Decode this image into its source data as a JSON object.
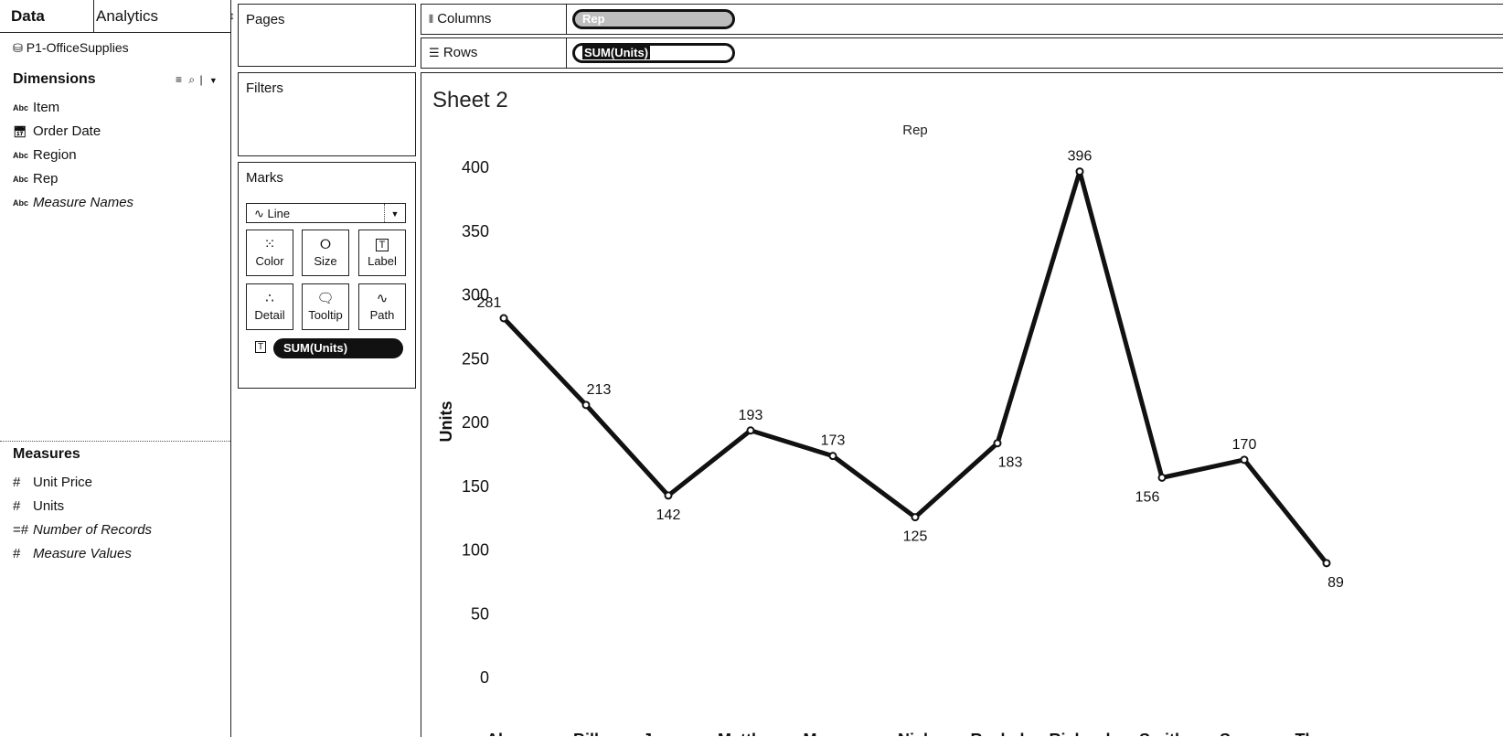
{
  "left_pane": {
    "tabs": {
      "data": "Data",
      "analytics": "Analytics"
    },
    "datasource": "P1-OfficeSupplies",
    "dimensions_header": "Dimensions",
    "dimensions": [
      {
        "type": "Abc",
        "label": "Item",
        "italic": false
      },
      {
        "type": "date",
        "label": "Order Date",
        "italic": false
      },
      {
        "type": "Abc",
        "label": "Region",
        "italic": false
      },
      {
        "type": "Abc",
        "label": "Rep",
        "italic": false
      },
      {
        "type": "Abc",
        "label": "Measure Names",
        "italic": true
      }
    ],
    "measures_header": "Measures",
    "measures": [
      {
        "label": "Unit Price",
        "italic": false
      },
      {
        "label": "Units",
        "italic": false
      },
      {
        "label": "Number of Records",
        "italic": true
      },
      {
        "label": "Measure Values",
        "italic": true
      }
    ]
  },
  "pages": {
    "title": "Pages"
  },
  "filters": {
    "title": "Filters"
  },
  "marks": {
    "title": "Marks",
    "type_select": "Line",
    "buttons": [
      "Color",
      "Size",
      "Label",
      "Detail",
      "Tooltip",
      "Path"
    ],
    "label_pill": "SUM(Units)"
  },
  "shelves": {
    "columns_label": "Columns",
    "columns_pill": "Rep",
    "rows_label": "Rows",
    "rows_pill": "SUM(Units)"
  },
  "sheet": {
    "title": "Sheet 2"
  },
  "chart_data": {
    "type": "line",
    "title": "Rep",
    "xlabel": "Rep",
    "ylabel": "Units",
    "categories": [
      "Alex",
      "Bill",
      "James",
      "Matthew",
      "Morgan",
      "Nick",
      "Rachel",
      "Richard",
      "Smith",
      "Susan",
      "Thomas"
    ],
    "values": [
      281,
      213,
      142,
      193,
      173,
      125,
      183,
      396,
      156,
      170,
      89
    ],
    "yticks": [
      0,
      50,
      100,
      150,
      200,
      250,
      300,
      350,
      400
    ],
    "ylim": [
      0,
      400
    ],
    "grid": false,
    "line_color": "#111111"
  }
}
